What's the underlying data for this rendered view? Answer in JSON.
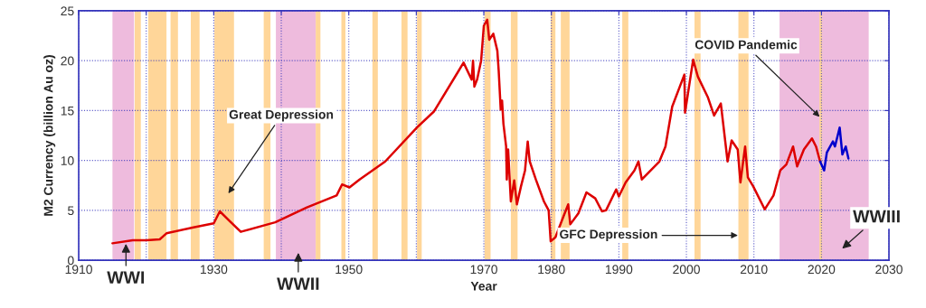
{
  "chart_data": {
    "type": "line",
    "xlabel": "Year",
    "ylabel": "M2 Currency (billion Au oz)",
    "xlim": [
      1910,
      2030
    ],
    "ylim": [
      0,
      25
    ],
    "xticks": [
      1910,
      {
        "value": 1920,
        "label": null
      },
      1930,
      {
        "value": 1940,
        "label": null
      },
      1950,
      {
        "value": 1960,
        "label": null
      },
      1970,
      1980,
      1990,
      2000,
      2010,
      2020,
      2030
    ],
    "yticks": [
      0,
      5,
      10,
      15,
      20,
      25
    ],
    "grid": true,
    "marker": "none",
    "line_style": "solid",
    "series": [
      {
        "color": "#dd0000",
        "x": [
          1915,
          1918,
          1920,
          1922,
          1923,
          1927,
          1930,
          1930.9,
          1934,
          1939.1,
          1943.8,
          1948.2,
          1949,
          1950.1,
          1951.6,
          1955.4,
          1960.1,
          1962.6,
          1967,
          1968.2,
          1968.4,
          1968.6,
          1969,
          1969.6,
          1970,
          1970.5,
          1970.8,
          1971.4,
          1972,
          1972.2,
          1972.5,
          1972.7,
          1972.9,
          1973.3,
          1973.4,
          1973.6,
          1974,
          1974.5,
          1974.9,
          1975.5,
          1976.1,
          1976.5,
          1976.8,
          1977.7,
          1978.9,
          1979.6,
          1979.9,
          1980.6,
          1981.8,
          1982.5,
          1982.8,
          1984,
          1985.2,
          1986.5,
          1987.5,
          1988.1,
          1989.6,
          1990,
          1991,
          1992.3,
          1992.9,
          1993.4,
          1996,
          1996.9,
          1997.9,
          1999.7,
          1999.8,
          2001,
          2001.7,
          2003.2,
          2004.1,
          2005.1,
          2006.1,
          2006.7,
          2007.6,
          2008,
          2008.7,
          2009.1,
          2009.9,
          2011.6,
          2012.9,
          2013.9,
          2014.8,
          2015.8,
          2016.4,
          2017.4,
          2018.6,
          2019.2,
          2019.8
        ],
        "values": [
          1.7,
          2.0,
          2.0,
          2.1,
          2.7,
          3.3,
          3.7,
          4.9,
          2.85,
          3.8,
          5.3,
          6.5,
          7.6,
          7.3,
          8.1,
          9.9,
          13.3,
          14.9,
          19.8,
          18.1,
          20.0,
          17.4,
          18.1,
          20.0,
          23.5,
          24.1,
          22.1,
          22.7,
          21.0,
          19.0,
          15.1,
          16.0,
          13.7,
          11.4,
          8.1,
          11.1,
          5.9,
          8.0,
          5.6,
          7.4,
          9.0,
          11.9,
          9.9,
          8.1,
          5.9,
          5.0,
          1.9,
          2.3,
          4.4,
          5.6,
          3.6,
          4.7,
          6.8,
          6.2,
          4.9,
          5.0,
          7.1,
          6.4,
          7.8,
          9.0,
          9.9,
          8.1,
          9.9,
          11.4,
          15.4,
          18.6,
          14.8,
          20.1,
          18.4,
          16.3,
          14.5,
          15.7,
          9.9,
          12.0,
          11.1,
          7.8,
          11.4,
          8.3,
          7.4,
          5.1,
          6.5,
          9.0,
          9.6,
          11.4,
          9.4,
          11.1,
          12.2,
          11.4,
          9.9
        ]
      },
      {
        "color": "#0000cc",
        "x": [
          2019.8,
          2020.4,
          2020.8,
          2021.7,
          2022,
          2022.7,
          2023.1,
          2023.6,
          2024
        ],
        "values": [
          9.9,
          9.0,
          10.8,
          11.9,
          11.4,
          13.3,
          10.6,
          11.4,
          10.2
        ]
      }
    ],
    "bands": [
      {
        "axis": "x",
        "from": 1915.0,
        "to": 1918.2,
        "color": "#eebbdd"
      },
      {
        "axis": "x",
        "from": 1918.3,
        "to": 1919.2,
        "color": "#ffd699"
      },
      {
        "axis": "x",
        "from": 1920.3,
        "to": 1923.0,
        "color": "#ffd699"
      },
      {
        "axis": "x",
        "from": 1923.6,
        "to": 1924.7,
        "color": "#ffd699"
      },
      {
        "axis": "x",
        "from": 1926.6,
        "to": 1927.9,
        "color": "#ffd699"
      },
      {
        "axis": "x",
        "from": 1930.1,
        "to": 1933.0,
        "color": "#ffd699"
      },
      {
        "axis": "x",
        "from": 1937.4,
        "to": 1938.4,
        "color": "#ffd699"
      },
      {
        "axis": "x",
        "from": 1939.2,
        "to": 1945.1,
        "color": "#eebbdd"
      },
      {
        "axis": "x",
        "from": 1945.1,
        "to": 1945.8,
        "color": "#ffd699"
      },
      {
        "axis": "x",
        "from": 1948.9,
        "to": 1949.5,
        "color": "#ffd699"
      },
      {
        "axis": "x",
        "from": 1953.5,
        "to": 1954.3,
        "color": "#ffd699"
      },
      {
        "axis": "x",
        "from": 1957.8,
        "to": 1958.7,
        "color": "#ffd699"
      },
      {
        "axis": "x",
        "from": 1960.1,
        "to": 1960.8,
        "color": "#ffd699"
      },
      {
        "axis": "x",
        "from": 1970.1,
        "to": 1971.0,
        "color": "#ffd699"
      },
      {
        "axis": "x",
        "from": 1974.0,
        "to": 1975.0,
        "color": "#ffd699"
      },
      {
        "axis": "x",
        "from": 1979.9,
        "to": 1980.6,
        "color": "#ffd699"
      },
      {
        "axis": "x",
        "from": 1981.4,
        "to": 1982.7,
        "color": "#ffd699"
      },
      {
        "axis": "x",
        "from": 1990.5,
        "to": 1991.4,
        "color": "#ffd699"
      },
      {
        "axis": "x",
        "from": 2001.2,
        "to": 2002.1,
        "color": "#ffd699"
      },
      {
        "axis": "x",
        "from": 2007.7,
        "to": 2009.2,
        "color": "#ffd699"
      },
      {
        "axis": "x",
        "from": 2013.8,
        "to": 2027.0,
        "color": "#eebbdd"
      },
      {
        "axis": "x",
        "from": 2019.7,
        "to": 2020.1,
        "color": "#ffd699"
      }
    ],
    "annotations": [
      {
        "text": "WWI",
        "x": 1917,
        "y": 1.9
      },
      "Great Depression",
      "WWII",
      {
        "text": "GFC Depression",
        "x": 2008,
        "y": 2.5
      },
      {
        "text": "COVID Pandemic",
        "x": 2020,
        "y": 14.2
      },
      "WWIII"
    ]
  }
}
